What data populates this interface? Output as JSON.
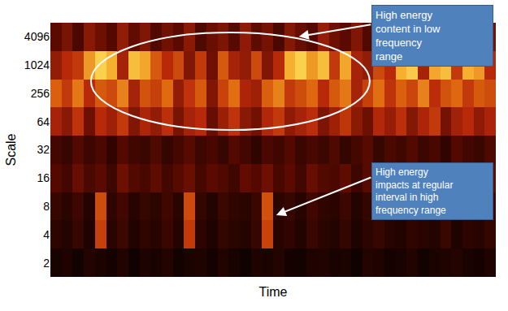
{
  "chart_data": {
    "type": "heatmap",
    "x_label": "Time",
    "y_label": "Scale",
    "tick_labels": "y",
    "grid": false,
    "y": [
      2,
      4,
      8,
      16,
      32,
      64,
      256,
      1024,
      4096
    ],
    "zlim": [
      0,
      1
    ],
    "cells": [
      [
        0.08,
        0.1,
        0.06,
        0.12,
        0.09,
        0.07,
        0.11,
        0.05,
        0.1,
        0.08,
        0.12,
        0.06,
        0.09,
        0.1,
        0.07,
        0.11,
        0.08,
        0.05,
        0.1,
        0.09,
        0.12,
        0.07,
        0.06,
        0.1,
        0.11,
        0.08,
        0.09,
        0.05,
        0.12,
        0.1,
        0.07,
        0.08,
        0.11,
        0.06,
        0.09,
        0.1,
        0.12,
        0.08,
        0.07,
        0.1
      ],
      [
        0.15,
        0.12,
        0.18,
        0.1,
        0.62,
        0.14,
        0.2,
        0.11,
        0.16,
        0.13,
        0.19,
        0.12,
        0.6,
        0.15,
        0.1,
        0.17,
        0.14,
        0.12,
        0.18,
        0.63,
        0.13,
        0.16,
        0.11,
        0.19,
        0.14,
        0.12,
        0.17,
        0.1,
        0.15,
        0.18,
        0.13,
        0.11,
        0.16,
        0.14,
        0.12,
        0.19,
        0.1,
        0.15,
        0.13,
        0.17
      ],
      [
        0.18,
        0.14,
        0.2,
        0.12,
        0.66,
        0.16,
        0.22,
        0.13,
        0.18,
        0.15,
        0.21,
        0.14,
        0.65,
        0.17,
        0.12,
        0.2,
        0.16,
        0.14,
        0.19,
        0.67,
        0.15,
        0.18,
        0.13,
        0.21,
        0.16,
        0.14,
        0.2,
        0.12,
        0.17,
        0.22,
        0.15,
        0.13,
        0.19,
        0.16,
        0.14,
        0.21,
        0.12,
        0.18,
        0.15,
        0.2
      ],
      [
        0.28,
        0.22,
        0.33,
        0.25,
        0.3,
        0.2,
        0.35,
        0.27,
        0.24,
        0.31,
        0.22,
        0.29,
        0.34,
        0.23,
        0.3,
        0.26,
        0.21,
        0.32,
        0.28,
        0.35,
        0.24,
        0.3,
        0.22,
        0.33,
        0.27,
        0.25,
        0.31,
        0.2,
        0.29,
        0.34,
        0.23,
        0.28,
        0.32,
        0.21,
        0.3,
        0.26,
        0.33,
        0.24,
        0.29,
        0.31
      ],
      [
        0.22,
        0.18,
        0.27,
        0.2,
        0.25,
        0.16,
        0.28,
        0.21,
        0.19,
        0.26,
        0.17,
        0.23,
        0.29,
        0.2,
        0.24,
        0.18,
        0.27,
        0.22,
        0.16,
        0.25,
        0.21,
        0.28,
        0.19,
        0.24,
        0.2,
        0.26,
        0.17,
        0.23,
        0.29,
        0.18,
        0.25,
        0.21,
        0.27,
        0.2,
        0.24,
        0.16,
        0.28,
        0.22,
        0.19,
        0.26
      ],
      [
        0.5,
        0.42,
        0.58,
        0.35,
        0.55,
        0.48,
        0.6,
        0.4,
        0.52,
        0.45,
        0.57,
        0.38,
        0.5,
        0.55,
        0.33,
        0.47,
        0.58,
        0.42,
        0.36,
        0.53,
        0.6,
        0.44,
        0.5,
        0.56,
        0.39,
        0.48,
        0.59,
        0.43,
        0.35,
        0.54,
        0.46,
        0.57,
        0.41,
        0.52,
        0.6,
        0.37,
        0.49,
        0.55,
        0.44,
        0.51
      ],
      [
        0.72,
        0.6,
        0.78,
        0.55,
        0.7,
        0.65,
        0.8,
        0.5,
        0.68,
        0.62,
        0.75,
        0.45,
        0.58,
        0.7,
        0.4,
        0.63,
        0.76,
        0.52,
        0.48,
        0.72,
        0.8,
        0.6,
        0.66,
        0.74,
        0.55,
        0.7,
        0.78,
        0.5,
        0.62,
        0.76,
        0.58,
        0.72,
        0.64,
        0.8,
        0.56,
        0.68,
        0.74,
        0.6,
        0.7,
        0.66
      ],
      [
        0.45,
        0.55,
        0.6,
        0.85,
        0.95,
        0.9,
        0.5,
        0.92,
        0.88,
        0.7,
        0.55,
        0.65,
        0.4,
        0.6,
        0.35,
        0.7,
        0.5,
        0.45,
        0.65,
        0.4,
        0.55,
        0.9,
        0.95,
        0.85,
        0.92,
        0.6,
        0.88,
        0.5,
        0.45,
        0.65,
        0.55,
        0.9,
        0.94,
        0.5,
        0.88,
        0.92,
        0.6,
        0.9,
        0.85,
        0.55
      ],
      [
        0.3,
        0.38,
        0.25,
        0.42,
        0.35,
        0.28,
        0.45,
        0.32,
        0.4,
        0.27,
        0.36,
        0.3,
        0.43,
        0.26,
        0.34,
        0.39,
        0.29,
        0.44,
        0.31,
        0.37,
        0.25,
        0.41,
        0.33,
        0.28,
        0.46,
        0.35,
        0.3,
        0.4,
        0.27,
        0.38,
        0.32,
        0.43,
        0.29,
        0.36,
        0.41,
        0.26,
        0.34,
        0.39,
        0.3,
        0.37
      ]
    ],
    "annotations": [
      {
        "text": [
          "High energy",
          "content in low",
          "frequency",
          "range"
        ]
      },
      {
        "text": [
          "High energy",
          "impacts at regular",
          "interval in high",
          "frequency range"
        ]
      }
    ]
  }
}
